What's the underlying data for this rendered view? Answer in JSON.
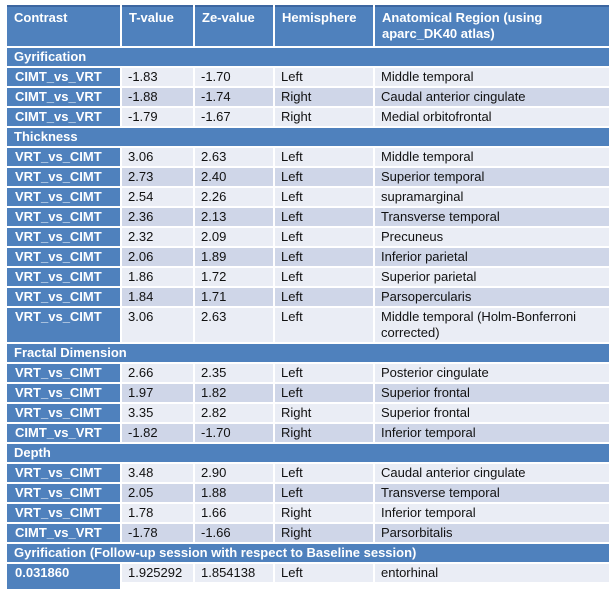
{
  "table": {
    "columns": [
      "Contrast",
      "T-value",
      "Ze-value",
      "Hemisphere",
      "Anatomical Region (using aparc_DK40 atlas)"
    ],
    "sections": [
      {
        "title": "Gyrification",
        "rows": [
          [
            "CIMT_vs_VRT",
            "-1.83",
            "-1.70",
            "Left",
            "Middle temporal"
          ],
          [
            "CIMT_vs_VRT",
            "-1.88",
            "-1.74",
            "Right",
            "Caudal anterior cingulate"
          ],
          [
            "CIMT_vs_VRT",
            "-1.79",
            "-1.67",
            "Right",
            "Medial orbitofrontal"
          ]
        ]
      },
      {
        "title": "Thickness",
        "rows": [
          [
            "VRT_vs_CIMT",
            "3.06",
            "2.63",
            "Left",
            "Middle temporal"
          ],
          [
            "VRT_vs_CIMT",
            "2.73",
            "2.40",
            "Left",
            "Superior temporal"
          ],
          [
            "VRT_vs_CIMT",
            "2.54",
            "2.26",
            "Left",
            "supramarginal"
          ],
          [
            "VRT_vs_CIMT",
            "2.36",
            "2.13",
            "Left",
            "Transverse temporal"
          ],
          [
            "VRT_vs_CIMT",
            "2.32",
            "2.09",
            "Left",
            "Precuneus"
          ],
          [
            "VRT_vs_CIMT",
            "2.06",
            "1.89",
            "Left",
            "Inferior parietal"
          ],
          [
            "VRT_vs_CIMT",
            "1.86",
            "1.72",
            "Left",
            "Superior parietal"
          ],
          [
            "VRT_vs_CIMT",
            "1.84",
            "1.71",
            "Left",
            "Parsopercularis"
          ],
          [
            "VRT_vs_CIMT",
            "3.06",
            "2.63",
            "Left",
            "Middle temporal (Holm-Bonferroni corrected)"
          ]
        ]
      },
      {
        "title": "Fractal Dimension",
        "rows": [
          [
            "VRT_vs_CIMT",
            "2.66",
            "2.35",
            "Left",
            "Posterior cingulate"
          ],
          [
            "VRT_vs_CIMT",
            "1.97",
            "1.82",
            "Left",
            "Superior frontal"
          ],
          [
            "VRT_vs_CIMT",
            "3.35",
            "2.82",
            "Right",
            "Superior frontal"
          ],
          [
            "CIMT_vs_VRT",
            "-1.82",
            "-1.70",
            "Right",
            "Inferior temporal"
          ]
        ]
      },
      {
        "title": "Depth",
        "rows": [
          [
            "VRT_vs_CIMT",
            "3.48",
            "2.90",
            "Left",
            "Caudal anterior cingulate"
          ],
          [
            "VRT_vs_CIMT",
            "2.05",
            "1.88",
            "Left",
            "Transverse temporal"
          ],
          [
            "VRT_vs_CIMT",
            "1.78",
            "1.66",
            "Right",
            "Inferior temporal"
          ],
          [
            "CIMT_vs_VRT",
            "-1.78",
            "-1.66",
            "Right",
            "Parsorbitalis"
          ]
        ]
      },
      {
        "title": "Gyrification (Follow-up session with respect to Baseline session)",
        "rows": [
          [
            "0.031860",
            "1.925292",
            "1.854138",
            "Left",
            "entorhinal"
          ]
        ],
        "tail_stub": true
      }
    ],
    "colors": {
      "header_blue": "#4f81bd",
      "header_top_border": "#3c66a0",
      "band_light": "#eaedf5",
      "band_dark": "#cfd6e8",
      "text_dark": "#111111",
      "text_light": "#ffffff",
      "page_bg": "#ffffff"
    }
  }
}
